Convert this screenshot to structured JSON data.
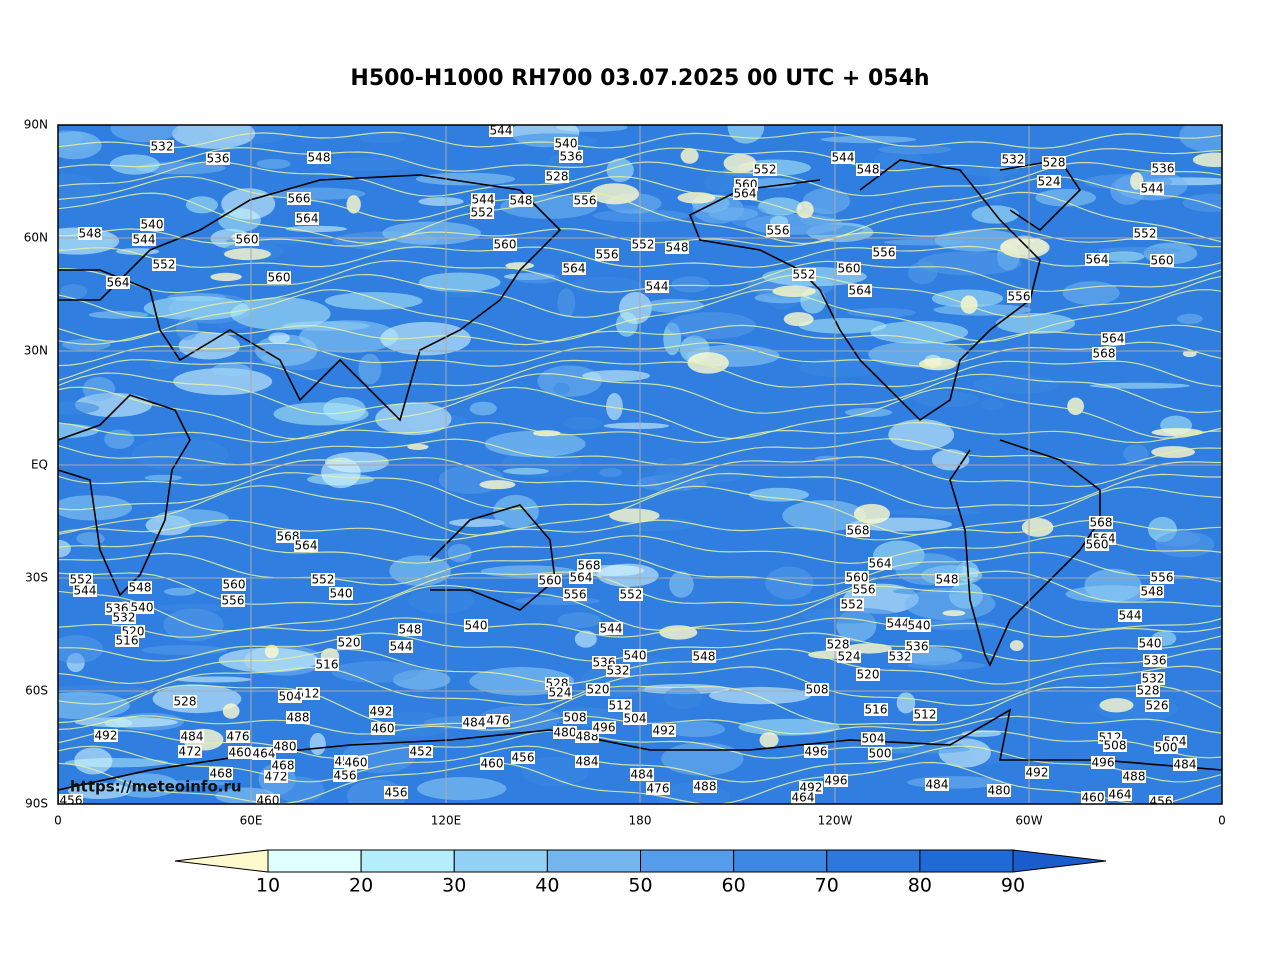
{
  "title": "H500-H1000 RH700 03.07.2025 00 UTC + 054h",
  "map": {
    "xticks": [
      "0",
      "60E",
      "120E",
      "180",
      "120W",
      "60W",
      "0"
    ],
    "yticks": [
      "90N",
      "60N",
      "30N",
      "EQ",
      "30S",
      "60S",
      "90S"
    ],
    "watermark": "https://meteoinfo.ru",
    "contour_labels": [
      532,
      536,
      548,
      544,
      540,
      536,
      528,
      552,
      544,
      548,
      532,
      528,
      524,
      536,
      544,
      540,
      548,
      544,
      560,
      552,
      564,
      560,
      566,
      564,
      544,
      552,
      548,
      556,
      560,
      556,
      564,
      552,
      548,
      544,
      560,
      564,
      556,
      552,
      560,
      564,
      556,
      556,
      564,
      552,
      560,
      564,
      568,
      568,
      564,
      552,
      544,
      548,
      536,
      540,
      532,
      520,
      516,
      560,
      556,
      552,
      540,
      520,
      516,
      548,
      544,
      540,
      568,
      564,
      560,
      556,
      552,
      544,
      540,
      536,
      532,
      548,
      568,
      564,
      560,
      556,
      552,
      548,
      544,
      540,
      536,
      532,
      528,
      524,
      520,
      508,
      516,
      512,
      504,
      500,
      496,
      568,
      564,
      560,
      556,
      548,
      544,
      540,
      536,
      532,
      528,
      526,
      512,
      508,
      504,
      500,
      496,
      492,
      488,
      484,
      484,
      480,
      464,
      460,
      456,
      528,
      512,
      504,
      488,
      492,
      460,
      452,
      484,
      476,
      472,
      460,
      464,
      480,
      468,
      472,
      468,
      460,
      456,
      492,
      456,
      460,
      456,
      456,
      460,
      456,
      484,
      484,
      476,
      480,
      488,
      496,
      504,
      512,
      520,
      528,
      524,
      508,
      492,
      484,
      476,
      488,
      492,
      496,
      464
    ]
  },
  "colorbar": {
    "ticks": [
      10,
      20,
      30,
      40,
      50,
      60,
      70,
      80,
      90
    ],
    "colors": [
      "#fffacd",
      "#e0ffff",
      "#b4eefa",
      "#92d0f6",
      "#74b6f0",
      "#559cea",
      "#3d88e2",
      "#2c78dc",
      "#1f6ad6",
      "#1a5ccc"
    ]
  }
}
